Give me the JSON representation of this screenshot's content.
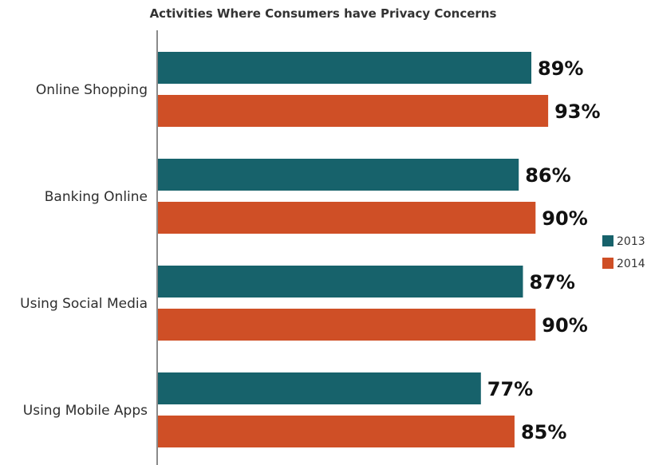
{
  "chart_data": {
    "type": "bar",
    "orientation": "horizontal",
    "title": "Activities Where Consumers have Privacy Concerns",
    "categories": [
      "Online Shopping",
      "Banking Online",
      "Using Social Media",
      "Using Mobile Apps"
    ],
    "series": [
      {
        "name": "2013",
        "color": "#17626b",
        "values": [
          89,
          86,
          87,
          77
        ],
        "labels": [
          "89%",
          "86%",
          "87%",
          "77%"
        ]
      },
      {
        "name": "2014",
        "color": "#cf4f26",
        "values": [
          93,
          90,
          90,
          85
        ],
        "labels": [
          "93%",
          "90%",
          "90%",
          "85%"
        ]
      }
    ],
    "xlim": [
      0,
      100
    ],
    "grid": false,
    "legend_position": "right"
  }
}
